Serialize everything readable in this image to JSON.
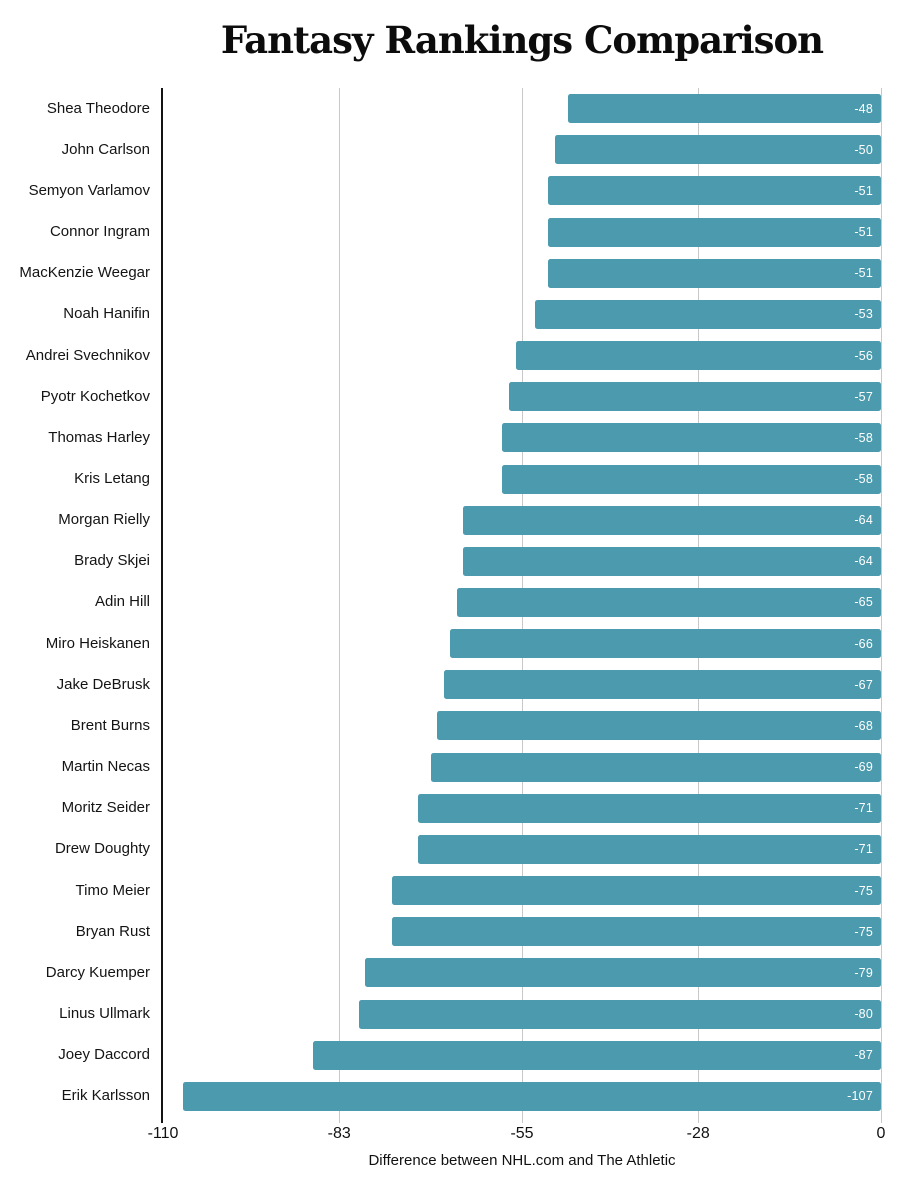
{
  "chart_data": {
    "type": "bar",
    "orientation": "horizontal",
    "title": "Fantasy Rankings Comparison",
    "xlabel": "Difference between NHL.com and The Athletic",
    "ylabel": "",
    "xlim": [
      -110,
      0
    ],
    "xticks": [
      -110,
      -83,
      -55,
      -28,
      0
    ],
    "xtick_labels": [
      "-110",
      "-83",
      "-55",
      "-28",
      "0"
    ],
    "grid": true,
    "legend": false,
    "categories": [
      "Shea Theodore",
      "John Carlson",
      "Semyon Varlamov",
      "Connor Ingram",
      "MacKenzie Weegar",
      "Noah Hanifin",
      "Andrei Svechnikov",
      "Pyotr Kochetkov",
      "Thomas Harley",
      "Kris Letang",
      "Morgan Rielly",
      "Brady Skjei",
      "Adin Hill",
      "Miro Heiskanen",
      "Jake DeBrusk",
      "Brent Burns",
      "Martin Necas",
      "Moritz Seider",
      "Drew Doughty",
      "Timo Meier",
      "Bryan Rust",
      "Darcy Kuemper",
      "Linus Ullmark",
      "Joey Daccord",
      "Erik Karlsson"
    ],
    "values": [
      -48,
      -50,
      -51,
      -51,
      -51,
      -53,
      -56,
      -57,
      -58,
      -58,
      -64,
      -64,
      -65,
      -66,
      -67,
      -68,
      -69,
      -71,
      -71,
      -75,
      -75,
      -79,
      -80,
      -87,
      -107
    ],
    "value_labels": [
      "-48",
      "-50",
      "-51",
      "-51",
      "-51",
      "-53",
      "-56",
      "-57",
      "-58",
      "-58",
      "-64",
      "-64",
      "-65",
      "-66",
      "-67",
      "-68",
      "-69",
      "-71",
      "-71",
      "-75",
      "-75",
      "-79",
      "-80",
      "-87",
      "-107"
    ]
  },
  "colors": {
    "bar": "#4b9aad",
    "gridline": "#c8c8c8",
    "axis_line": "#141414",
    "value_text": "#ffffff",
    "label_text": "#141414",
    "title_text": "#0c0c0c",
    "background": "#ffffff"
  }
}
